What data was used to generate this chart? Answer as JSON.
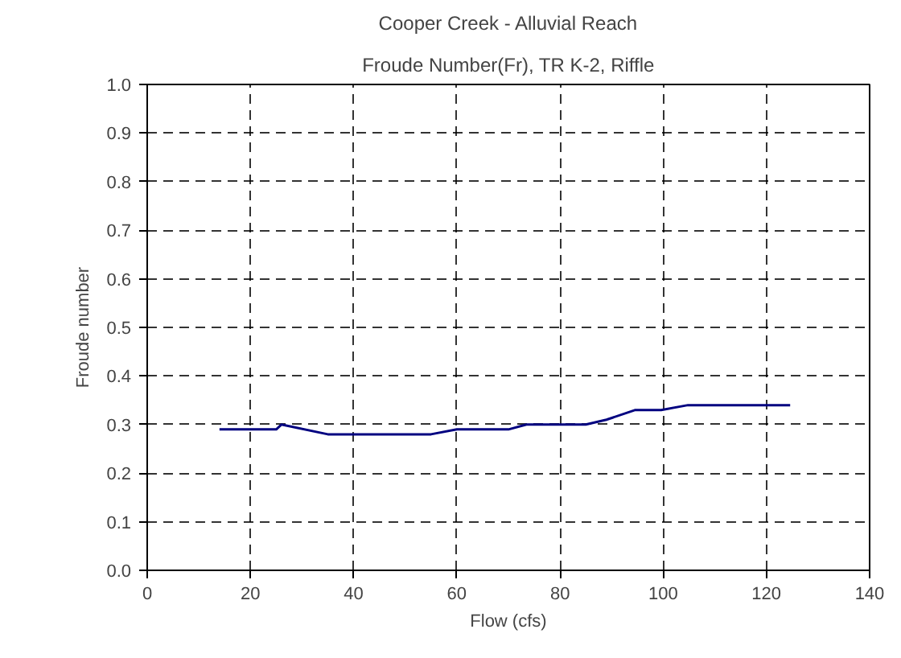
{
  "chart_data": {
    "type": "line",
    "title": "Cooper Creek - Alluvial Reach",
    "subtitle": "Froude Number(Fr), TR K-2, Riffle",
    "xlabel": "Flow (cfs)",
    "ylabel": "Froude number",
    "x": [
      14,
      25,
      26,
      35,
      55,
      60,
      70,
      73.5,
      85,
      89,
      94.6,
      99.6,
      104.8,
      124.6
    ],
    "series": [
      {
        "color": "#000080",
        "values": [
          0.29,
          0.29,
          0.3,
          0.28,
          0.28,
          0.29,
          0.29,
          0.3,
          0.3,
          0.31,
          0.33,
          0.33,
          0.34,
          0.34
        ]
      }
    ],
    "xlim": [
      0,
      140
    ],
    "xticks": [
      0,
      20,
      40,
      60,
      80,
      100,
      120,
      140
    ],
    "ylim": [
      0,
      1
    ],
    "yticks": [
      {
        "value": 0,
        "label": "0.0"
      },
      0.1,
      0.2,
      0.3,
      0.4,
      0.5,
      0.6,
      0.7,
      0.8,
      0.9,
      {
        "value": 1,
        "label": "1.0"
      }
    ],
    "grid": true,
    "marker": "none",
    "line_style": "solid"
  }
}
